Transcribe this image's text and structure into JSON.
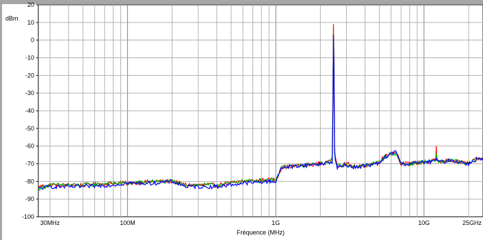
{
  "chart_data": {
    "type": "line",
    "title": "",
    "ylabel": "dBm",
    "xlabel": "Fréquence (MHz)",
    "x_scale": "log",
    "x_unit": "MHz",
    "xlim": [
      25,
      25000
    ],
    "ylim": [
      -100,
      20
    ],
    "grid": true,
    "y_ticks": [
      20,
      10,
      0,
      -10,
      -20,
      -30,
      -40,
      -50,
      -60,
      -70,
      -80,
      -90,
      -100
    ],
    "y_tick_labels": [
      "20",
      "10",
      "0",
      "-10",
      "-20",
      "-30",
      "-40",
      "-50",
      "-60",
      "-70",
      "-80",
      "-90",
      "-100"
    ],
    "x_tick_labels": [
      {
        "value": 30,
        "label": "30MHz"
      },
      {
        "value": 100,
        "label": "100M"
      },
      {
        "value": 1000,
        "label": "1G"
      },
      {
        "value": 10000,
        "label": "10G"
      },
      {
        "value": 25000,
        "label": "25GHz"
      }
    ],
    "series": [
      {
        "color": "#ff0000",
        "x": [
          25,
          30,
          50,
          80,
          100,
          150,
          200,
          250,
          400,
          600,
          900,
          1000,
          1100,
          1500,
          2000,
          2300,
          2400,
          2430,
          2450,
          2470,
          2490,
          2520,
          2600,
          3000,
          3500,
          4000,
          5000,
          5500,
          6500,
          7000,
          8000,
          10000,
          11000,
          12000,
          12100,
          12200,
          12300,
          13000,
          15000,
          20000,
          23000,
          25000
        ],
        "y": [
          -83,
          -82,
          -82,
          -81,
          -81,
          -80,
          -80,
          -82,
          -82,
          -80,
          -79,
          -79,
          -72,
          -71,
          -70,
          -69,
          -66,
          -30,
          9,
          -10,
          -62,
          -66,
          -71,
          -70,
          -72,
          -71,
          -69,
          -65,
          -63,
          -70,
          -70,
          -69,
          -69,
          -68,
          -60,
          -68,
          -68,
          -69,
          -68,
          -70,
          -67,
          -68
        ]
      },
      {
        "color": "#00aa00",
        "x": [
          25,
          30,
          50,
          80,
          100,
          150,
          200,
          250,
          400,
          600,
          900,
          1000,
          1100,
          1500,
          2000,
          2300,
          2400,
          2430,
          2450,
          2470,
          2490,
          2520,
          2600,
          3000,
          3500,
          4000,
          5000,
          5500,
          6500,
          7000,
          8000,
          10000,
          11000,
          12000,
          12100,
          12200,
          12300,
          13000,
          15000,
          20000,
          23000,
          25000
        ],
        "y": [
          -84,
          -82,
          -82,
          -81,
          -81,
          -80,
          -80,
          -82,
          -82,
          -80,
          -79,
          -79,
          -72,
          -71,
          -70,
          -69,
          -68,
          -35,
          5,
          -15,
          -64,
          -68,
          -71,
          -70,
          -72,
          -71,
          -69,
          -66,
          -64,
          -70,
          -70,
          -69,
          -69,
          -68,
          -64,
          -68,
          -68,
          -69,
          -68,
          -70,
          -67,
          -68
        ]
      },
      {
        "color": "#0000ff",
        "x": [
          25,
          30,
          50,
          80,
          100,
          150,
          200,
          250,
          400,
          600,
          900,
          1000,
          1100,
          1500,
          2000,
          2300,
          2400,
          2430,
          2450,
          2470,
          2490,
          2520,
          2600,
          3000,
          3500,
          4000,
          5000,
          5500,
          6500,
          7000,
          8000,
          10000,
          11000,
          12000,
          12100,
          12200,
          12300,
          13000,
          15000,
          20000,
          23000,
          25000
        ],
        "y": [
          -84,
          -83,
          -83,
          -82,
          -81,
          -81,
          -80,
          -83,
          -83,
          -81,
          -80,
          -80,
          -72,
          -71,
          -70,
          -69,
          -70,
          -40,
          3,
          -20,
          -61,
          -68,
          -72,
          -71,
          -72,
          -71,
          -70,
          -66,
          -63,
          -70,
          -70,
          -69,
          -69,
          -68,
          -67,
          -68,
          -68,
          -69,
          -68,
          -70,
          -67,
          -68
        ]
      }
    ]
  }
}
